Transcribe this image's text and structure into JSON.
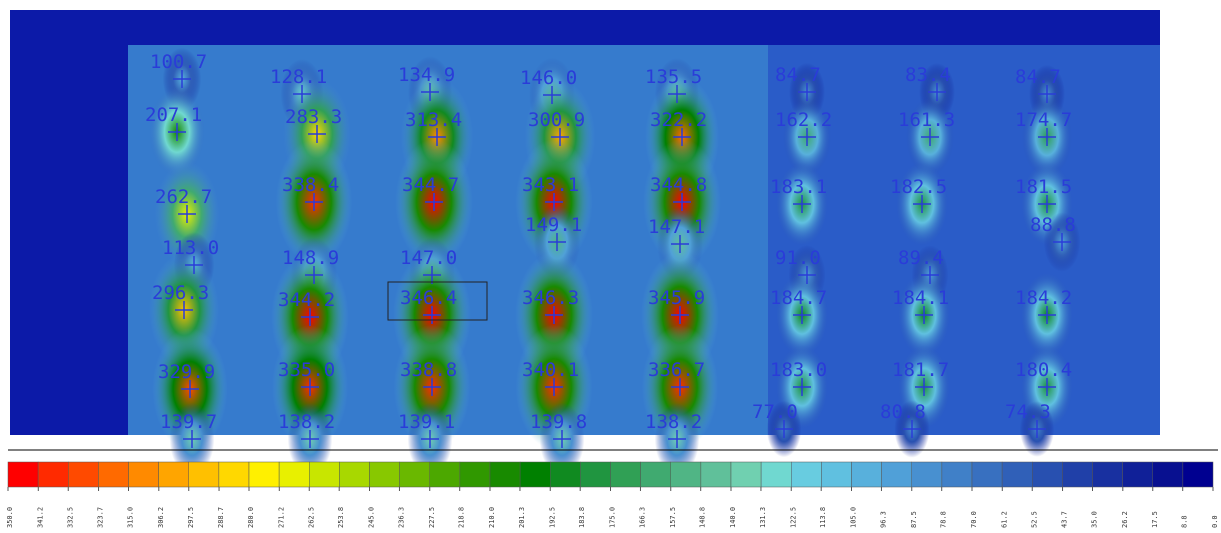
{
  "chart_data": {
    "type": "heatmap",
    "values": [
      100.7,
      128.1,
      134.9,
      146.0,
      135.5,
      84.7,
      83.4,
      84.7,
      207.1,
      283.3,
      313.4,
      300.9,
      322.2,
      162.2,
      161.3,
      174.7,
      262.7,
      338.4,
      344.7,
      343.1,
      344.8,
      183.1,
      182.5,
      181.5,
      149.1,
      147.1,
      88.8,
      113.0,
      148.9,
      147.0,
      91.0,
      89.4,
      296.3,
      344.2,
      346.4,
      346.3,
      345.9,
      184.7,
      184.1,
      184.2,
      329.9,
      335.0,
      338.8,
      340.1,
      336.7,
      183.0,
      181.7,
      180.4,
      139.7,
      138.2,
      139.1,
      139.8,
      138.2,
      77.0,
      80.8,
      74.3
    ],
    "value_labels": [
      "100.7",
      "128.1",
      "134.9",
      "146.0",
      "135.5",
      "84.7",
      "83.4",
      "84.7",
      "207.1",
      "283.3",
      "313.4",
      "300.9",
      "322.2",
      "162.2",
      "161.3",
      "174.7",
      "262.7",
      "338.4",
      "344.7",
      "343.1",
      "344.8",
      "183.1",
      "182.5",
      "181.5",
      "149.1",
      "147.1",
      "88.8",
      "113.0",
      "148.9",
      "147.0",
      "91.0",
      "89.4",
      "296.3",
      "344.2",
      "346.4",
      "346.3",
      "345.9",
      "184.7",
      "184.1",
      "184.2",
      "329.9",
      "335.0",
      "338.8",
      "340.1",
      "336.7",
      "183.0",
      "181.7",
      "180.4",
      "139.7",
      "138.2",
      "139.1",
      "139.8",
      "138.2",
      "77.0",
      "80.8",
      "74.3"
    ],
    "legend": {
      "colors": [
        "#ff0000",
        "#ff2a00",
        "#ff4a00",
        "#ff6a00",
        "#ff8a00",
        "#ffa500",
        "#ffc000",
        "#ffd800",
        "#fff000",
        "#e8f000",
        "#c8e600",
        "#a8d800",
        "#88c800",
        "#6ab800",
        "#4ca800",
        "#309800",
        "#188a00",
        "#008000",
        "#108a20",
        "#209540",
        "#30a055",
        "#40aa70",
        "#50b585",
        "#60c09a",
        "#70d0b0",
        "#70d8d0",
        "#68cce0",
        "#60c0e0",
        "#58b0dc",
        "#50a0d8",
        "#4890d0",
        "#4080c8",
        "#3870c0",
        "#3060b8",
        "#2850b0",
        "#2040a8",
        "#1830a0",
        "#102098",
        "#081090",
        "#000090"
      ],
      "ticks": [
        {
          "value": 350,
          "label": "350.0"
        },
        341.2,
        332.5,
        323.7,
        {
          "value": 315,
          "label": "315.0"
        },
        306.2,
        297.5,
        288.7,
        {
          "value": 280,
          "label": "280.0"
        },
        271.2,
        262.5,
        253.8,
        {
          "value": 245,
          "label": "245.0"
        },
        236.3,
        227.5,
        218.8,
        {
          "value": 210,
          "label": "210.0"
        },
        201.3,
        192.5,
        183.8,
        {
          "value": 175,
          "label": "175.0"
        },
        166.3,
        157.5,
        148.8,
        {
          "value": 140,
          "label": "140.0"
        },
        131.3,
        122.5,
        113.8,
        {
          "value": 105,
          "label": "105.0"
        },
        96.3,
        87.5,
        78.8,
        {
          "value": 70,
          "label": "70.0"
        },
        61.2,
        52.5,
        43.7,
        {
          "value": 35,
          "label": "35.0"
        },
        26.2,
        17.5,
        8.8,
        {
          "value": 0,
          "label": "0.0"
        }
      ]
    }
  }
}
